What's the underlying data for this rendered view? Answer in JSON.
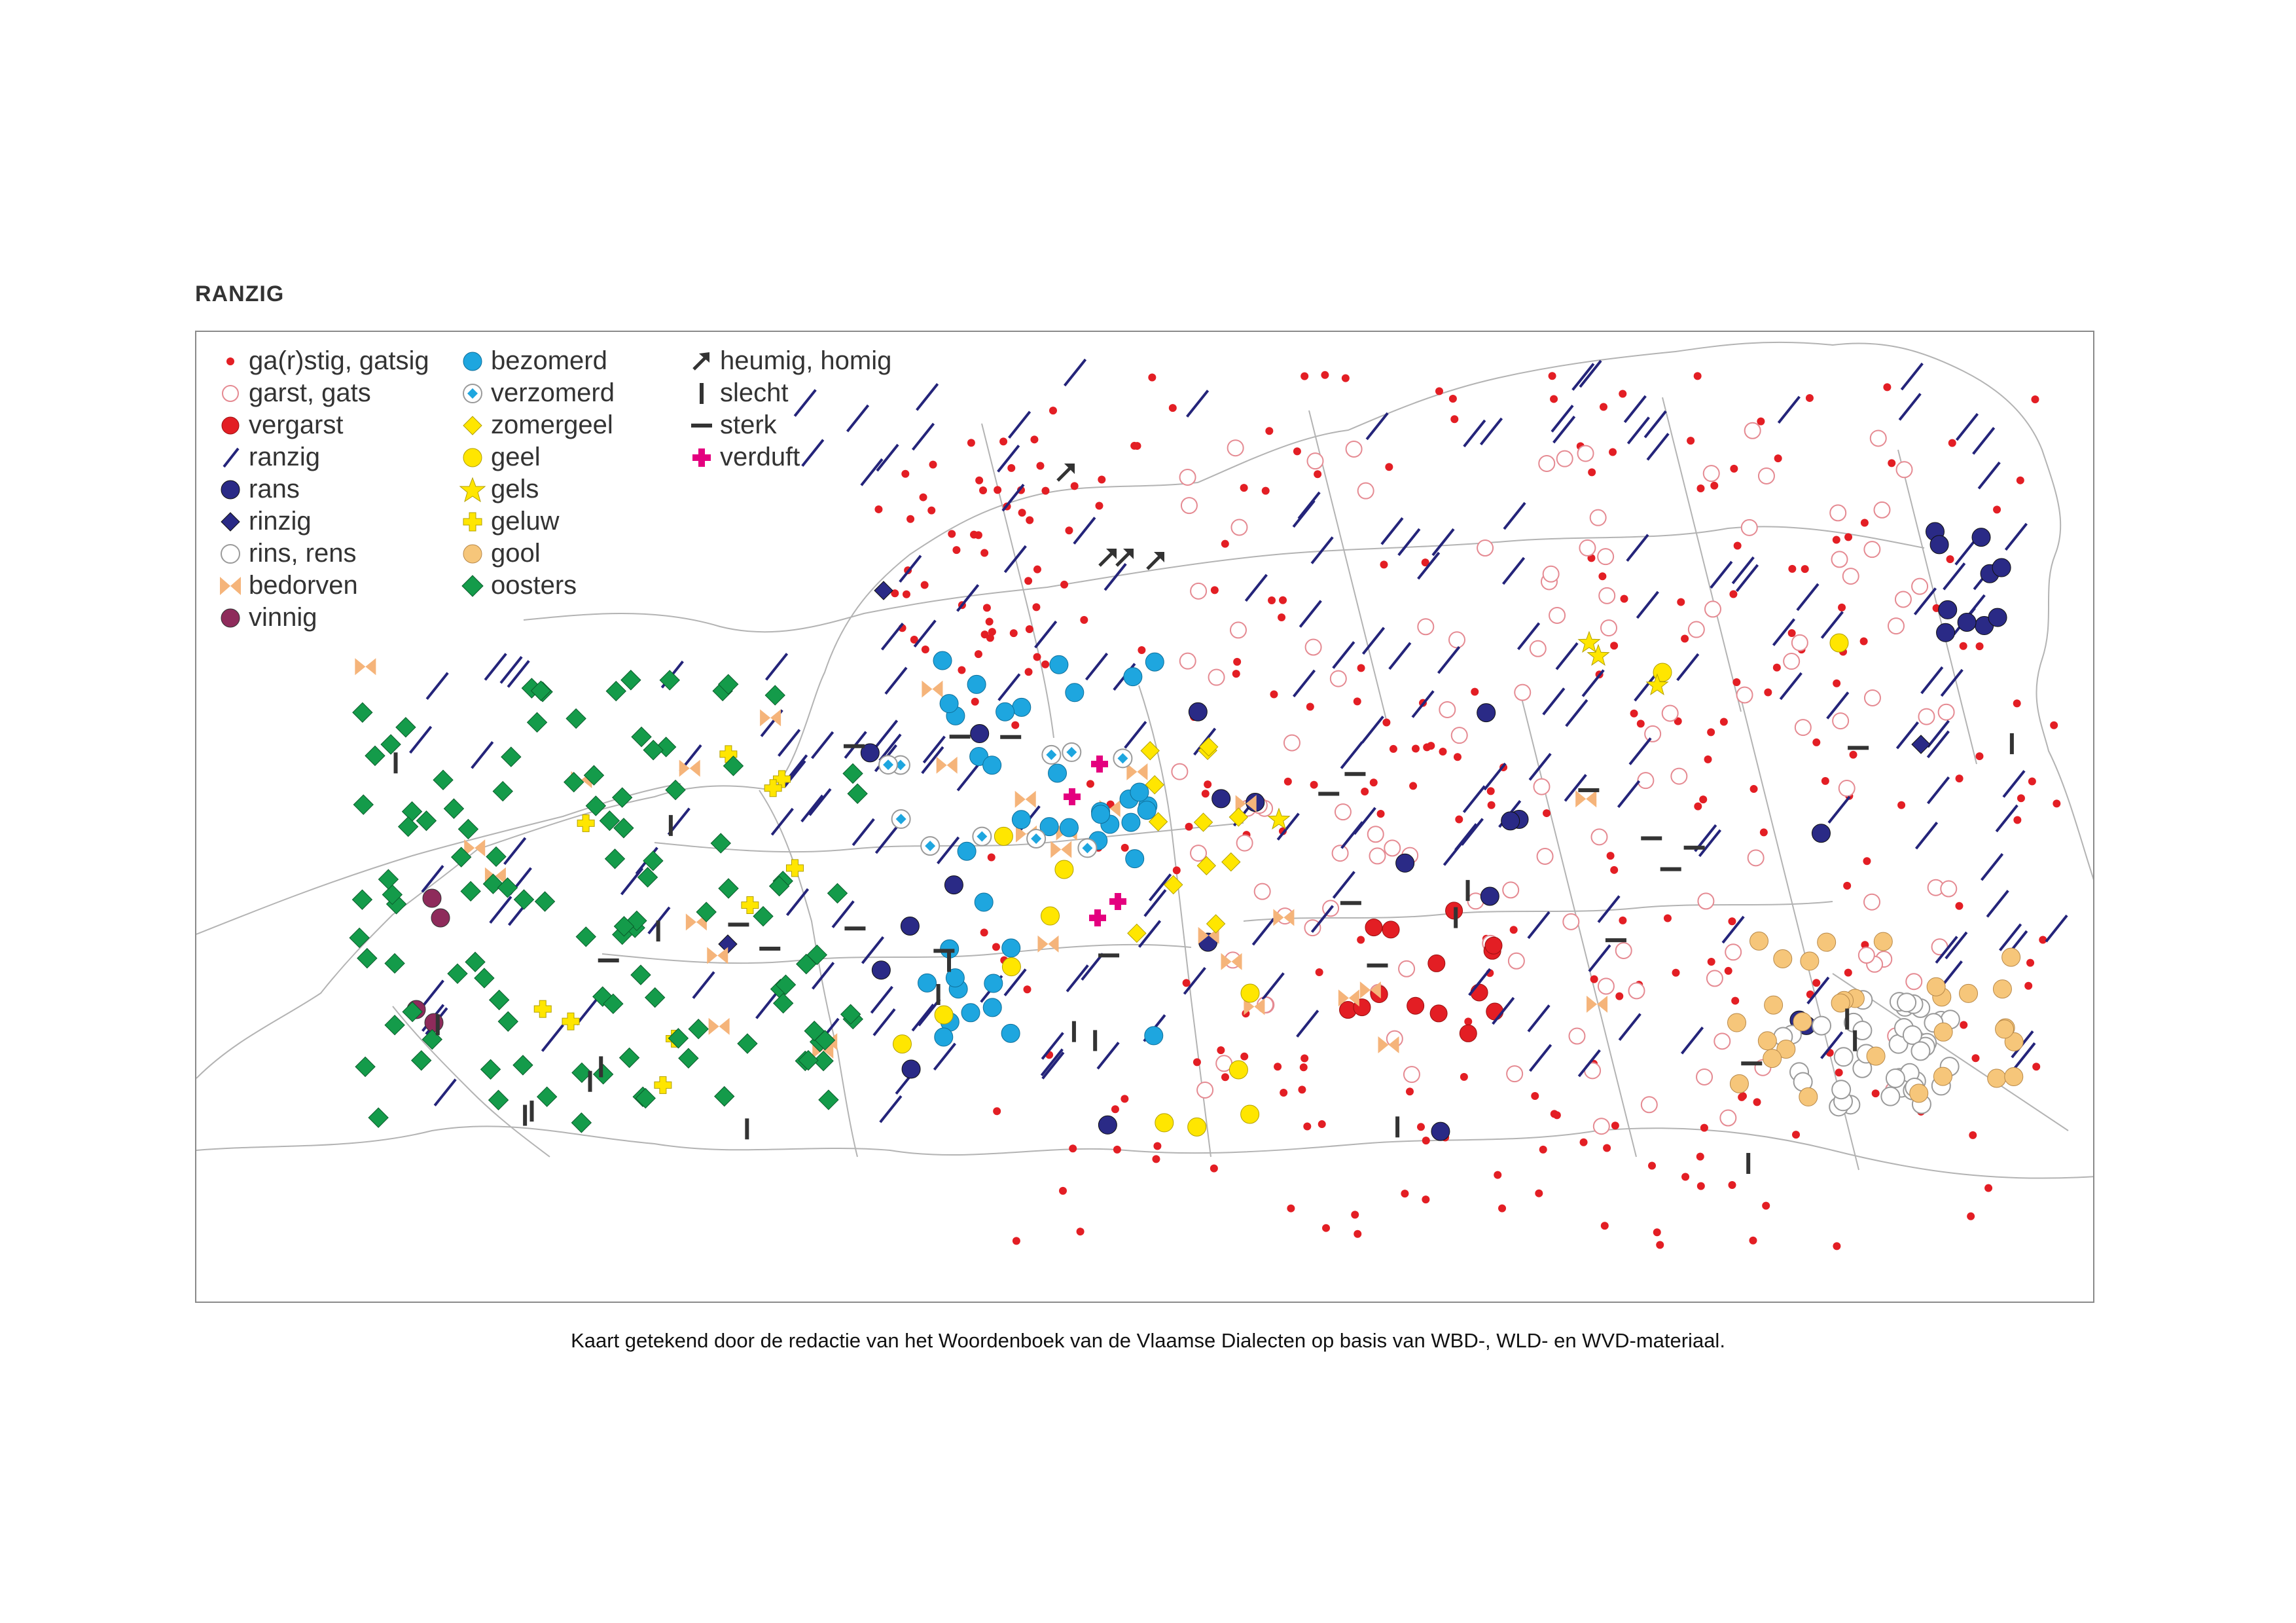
{
  "title": "RANZIG",
  "caption": "Kaart getekend door de redactie van het Woordenboek van de Vlaamse Dialecten op basis van WBD-, WLD- en WVD-materiaal.",
  "legend": [
    {
      "label": "ga(r)stig, gatsig",
      "symbol": "small-red-dot",
      "color": "#e31e24"
    },
    {
      "label": "garst, gats",
      "symbol": "open-red-circle",
      "color": "#e58a92"
    },
    {
      "label": "vergarst",
      "symbol": "large-red-dot",
      "color": "#e31e24"
    },
    {
      "label": "ranzig",
      "symbol": "blue-slash",
      "color": "#24247a"
    },
    {
      "label": "rans",
      "symbol": "navy-dot",
      "color": "#2a2a86"
    },
    {
      "label": "rinzig",
      "symbol": "navy-diamond",
      "color": "#2a2a86"
    },
    {
      "label": "rins, rens",
      "symbol": "open-gray-circle",
      "color": "#9a9a9a"
    },
    {
      "label": "bedorven",
      "symbol": "orange-bowtie",
      "color": "#f5b47a"
    },
    {
      "label": "vinnig",
      "symbol": "purple-dot",
      "color": "#8e2b5b"
    },
    {
      "label": "bezomerd",
      "symbol": "cyan-dot",
      "color": "#1ea6df"
    },
    {
      "label": "verzomerd",
      "symbol": "cyan-diamond-in-circle",
      "color": "#1ea6df"
    },
    {
      "label": "zomergeel",
      "symbol": "yellow-diamond",
      "color": "#ffe600"
    },
    {
      "label": "geel",
      "symbol": "yellow-dot",
      "color": "#ffe600"
    },
    {
      "label": "gels",
      "symbol": "yellow-star",
      "color": "#ffe600"
    },
    {
      "label": "geluw",
      "symbol": "yellow-cross",
      "color": "#ffe600"
    },
    {
      "label": "gool",
      "symbol": "tan-dot",
      "color": "#f6c67a"
    },
    {
      "label": "oosters",
      "symbol": "green-diamond",
      "color": "#149b4a"
    },
    {
      "label": "heumig, homig",
      "symbol": "dark-arrow",
      "color": "#333333"
    },
    {
      "label": "slecht",
      "symbol": "vertical-bar",
      "color": "#333333"
    },
    {
      "label": "sterk",
      "symbol": "horizontal-bar",
      "color": "#333333"
    },
    {
      "label": "verduft",
      "symbol": "magenta-cross",
      "color": "#e4007f"
    }
  ]
}
